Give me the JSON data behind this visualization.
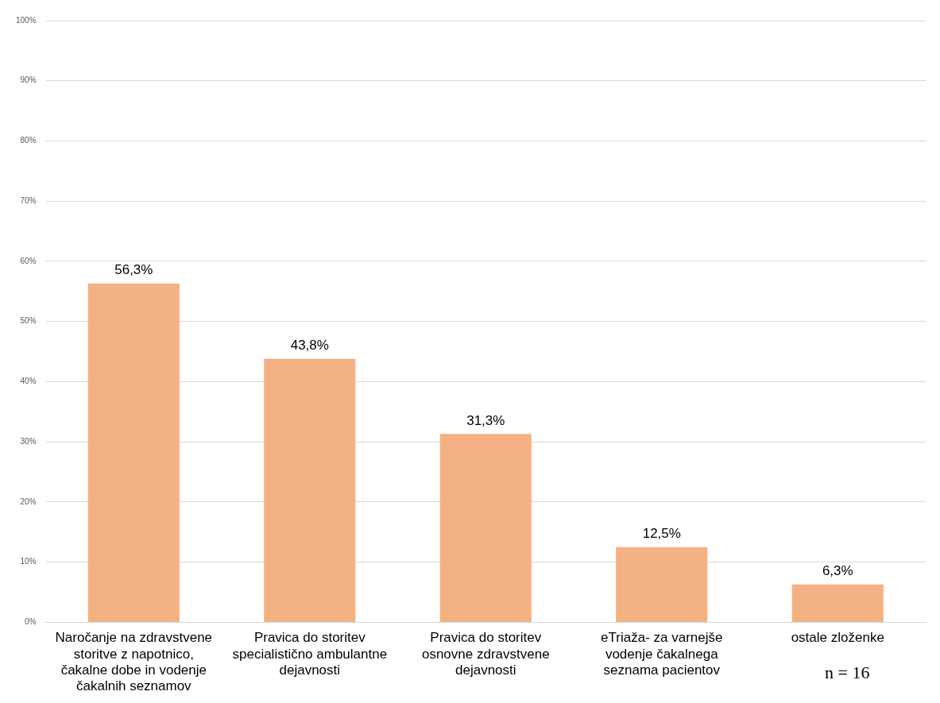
{
  "chart_data": {
    "type": "bar",
    "categories": [
      "Naročanje na zdravstvene storitve z napotnico, čakalne dobe in vodenje čakalnih seznamov",
      "Pravica do storitev specialistično ambulantne dejavnosti",
      "Pravica do storitev osnovne zdravstvene dejavnosti",
      "eTriaža- za varnejše vodenje čakalnega seznama pacientov",
      "ostale zloženke"
    ],
    "values": [
      56.3,
      43.8,
      31.3,
      12.5,
      6.3
    ],
    "value_labels": [
      "56,3%",
      "43,8%",
      "31,3%",
      "12,5%",
      "6,3%"
    ],
    "color": "#f4b183",
    "ylim": [
      0,
      100
    ],
    "yticks": [
      {
        "value": 0,
        "label": "0%"
      },
      {
        "value": 10,
        "label": "10%"
      },
      {
        "value": 20,
        "label": "20%"
      },
      {
        "value": 30,
        "label": "30%"
      },
      {
        "value": 40,
        "label": "40%"
      },
      {
        "value": 50,
        "label": "50%"
      },
      {
        "value": 60,
        "label": "60%"
      },
      {
        "value": 70,
        "label": "70%"
      },
      {
        "value": 80,
        "label": "80%"
      },
      {
        "value": 90,
        "label": "90%"
      },
      {
        "value": 100,
        "label": "100%"
      }
    ],
    "grid": "y",
    "annotations": [
      "n = 16"
    ]
  }
}
